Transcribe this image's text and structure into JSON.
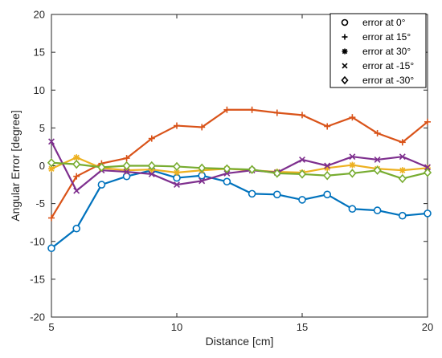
{
  "chart_data": {
    "type": "line",
    "xlabel": "Distance [cm]",
    "ylabel": "Angular Error [degree]",
    "xlim": [
      5,
      20
    ],
    "ylim": [
      -20,
      20
    ],
    "xticks": [
      "5",
      "10",
      "15",
      "20"
    ],
    "yticks": [
      "-20",
      "-15",
      "-10",
      "-5",
      "0",
      "5",
      "10",
      "15",
      "20"
    ],
    "grid": false,
    "legend_position": "top-right",
    "x": [
      5,
      6,
      7,
      8,
      9,
      10,
      11,
      12,
      13,
      14,
      15,
      16,
      17,
      18,
      19,
      20
    ],
    "series": [
      {
        "name": "error at 0°",
        "marker": "circle",
        "color": "#0072BD",
        "values": [
          -10.9,
          -8.3,
          -2.5,
          -1.4,
          -0.6,
          -1.6,
          -1.3,
          -2.1,
          -3.7,
          -3.8,
          -4.5,
          -3.8,
          -5.7,
          -5.9,
          -6.6,
          -6.3
        ]
      },
      {
        "name": "error at 15°",
        "marker": "plus",
        "color": "#D95319",
        "values": [
          -6.9,
          -1.4,
          0.3,
          1.0,
          3.6,
          5.3,
          5.1,
          7.4,
          7.4,
          7.0,
          6.7,
          5.2,
          6.4,
          4.3,
          3.1,
          5.8
        ]
      },
      {
        "name": "error at 30°",
        "marker": "asterisk",
        "color": "#EDB120",
        "values": [
          -0.4,
          1.1,
          -0.3,
          -0.6,
          -0.5,
          -0.9,
          -0.6,
          -0.4,
          -0.6,
          -0.8,
          -0.9,
          -0.3,
          0.1,
          -0.4,
          -0.6,
          -0.3
        ]
      },
      {
        "name": "error at -15°",
        "marker": "x",
        "color": "#7E2F8E",
        "values": [
          3.2,
          -3.3,
          -0.6,
          -0.8,
          -1.1,
          -2.5,
          -2.0,
          -1.0,
          -0.6,
          -0.9,
          0.8,
          0.0,
          1.2,
          0.8,
          1.2,
          -0.2
        ]
      },
      {
        "name": "error at -30°",
        "marker": "diamond",
        "color": "#77AC30",
        "values": [
          0.4,
          0.2,
          -0.2,
          0.0,
          0.0,
          -0.1,
          -0.3,
          -0.4,
          -0.5,
          -1.0,
          -1.1,
          -1.3,
          -1.0,
          -0.6,
          -1.7,
          -0.9
        ]
      }
    ]
  }
}
